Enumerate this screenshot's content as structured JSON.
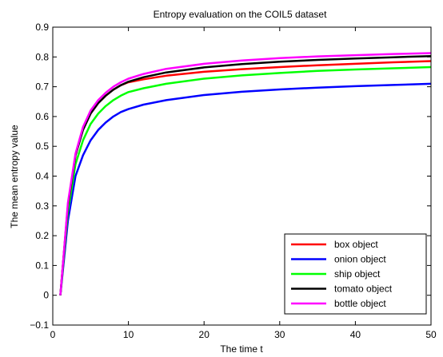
{
  "chart_data": {
    "type": "line",
    "title": "Entropy evaluation on the COIL5 dataset",
    "xlabel": "The time t",
    "ylabel": "The mean entropy value",
    "xlim": [
      0,
      50
    ],
    "ylim": [
      -0.1,
      0.9
    ],
    "xticks": [
      0,
      10,
      20,
      30,
      40,
      50
    ],
    "yticks": [
      -0.1,
      0,
      0.1,
      0.2,
      0.3,
      0.4,
      0.5,
      0.6,
      0.7,
      0.8,
      0.9
    ],
    "xtick_labels": [
      "0",
      "10",
      "20",
      "30",
      "40",
      "50"
    ],
    "ytick_labels": [
      "−0.1",
      "0",
      "0.1",
      "0.2",
      "0.3",
      "0.4",
      "0.5",
      "0.6",
      "0.7",
      "0.8",
      "0.9"
    ],
    "grid": false,
    "legend_position": "bottom-right",
    "x": [
      1,
      2,
      3,
      4,
      5,
      6,
      7,
      8,
      9,
      10,
      12,
      15,
      20,
      25,
      30,
      35,
      40,
      45,
      50
    ],
    "series": [
      {
        "name": "box object",
        "color": "#ff0000",
        "values": [
          0.0,
          0.3,
          0.47,
          0.56,
          0.61,
          0.645,
          0.67,
          0.69,
          0.705,
          0.715,
          0.725,
          0.737,
          0.75,
          0.759,
          0.766,
          0.772,
          0.777,
          0.782,
          0.786
        ]
      },
      {
        "name": "onion object",
        "color": "#0000ff",
        "values": [
          0.0,
          0.25,
          0.4,
          0.47,
          0.52,
          0.555,
          0.58,
          0.6,
          0.615,
          0.625,
          0.64,
          0.655,
          0.672,
          0.683,
          0.691,
          0.697,
          0.702,
          0.706,
          0.71
        ]
      },
      {
        "name": "ship object",
        "color": "#00ff00",
        "values": [
          0.0,
          0.28,
          0.44,
          0.52,
          0.575,
          0.61,
          0.635,
          0.655,
          0.67,
          0.682,
          0.695,
          0.71,
          0.727,
          0.738,
          0.746,
          0.753,
          0.758,
          0.762,
          0.766
        ]
      },
      {
        "name": "tomato object",
        "color": "#000000",
        "values": [
          0.0,
          0.3,
          0.47,
          0.555,
          0.61,
          0.645,
          0.67,
          0.69,
          0.705,
          0.717,
          0.732,
          0.748,
          0.765,
          0.776,
          0.784,
          0.79,
          0.795,
          0.799,
          0.803
        ]
      },
      {
        "name": "bottle object",
        "color": "#ff00ff",
        "values": [
          0.0,
          0.31,
          0.475,
          0.565,
          0.62,
          0.655,
          0.68,
          0.7,
          0.715,
          0.727,
          0.743,
          0.76,
          0.777,
          0.788,
          0.796,
          0.802,
          0.806,
          0.81,
          0.813
        ]
      }
    ]
  }
}
